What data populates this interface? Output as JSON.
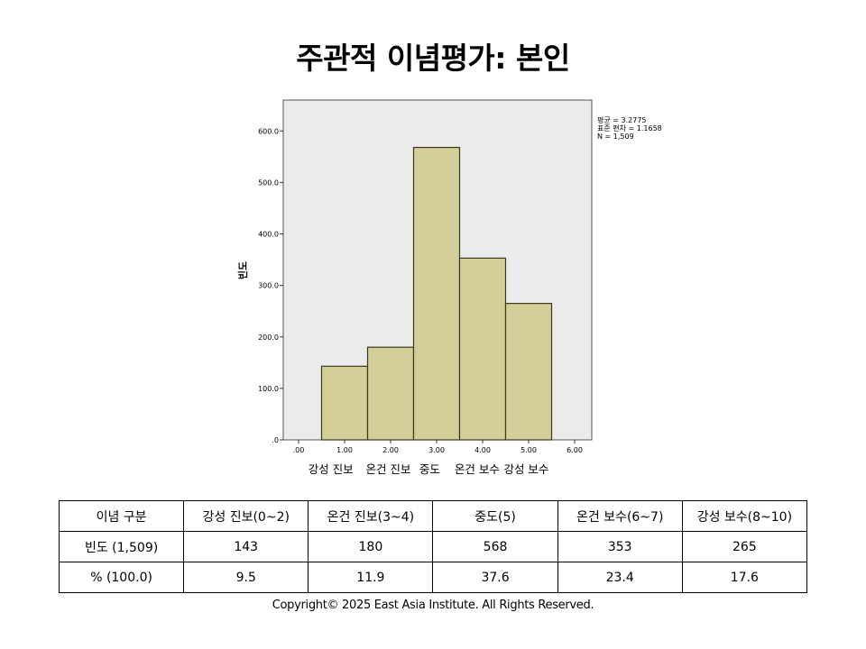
{
  "title": "주관적 이념평가: 본인",
  "chart_data": {
    "type": "bar",
    "title": "주관적 이념평가: 본인",
    "ylabel": "빈도",
    "xlabel": "",
    "x_ticks": [
      ".00",
      "1.00",
      "2.00",
      "3.00",
      "4.00",
      "5.00",
      "6.00"
    ],
    "x_range": [
      0,
      6
    ],
    "y_ticks": [
      ".0",
      "100.0",
      "200.0",
      "300.0",
      "400.0",
      "500.0",
      "600.0"
    ],
    "ylim": [
      0,
      660
    ],
    "bars": [
      {
        "x_start": 0.5,
        "x_end": 1.5,
        "value": 143
      },
      {
        "x_start": 1.5,
        "x_end": 2.5,
        "value": 180
      },
      {
        "x_start": 2.5,
        "x_end": 3.5,
        "value": 568
      },
      {
        "x_start": 3.5,
        "x_end": 4.5,
        "value": 353
      },
      {
        "x_start": 4.5,
        "x_end": 5.5,
        "value": 265
      }
    ],
    "category_labels": [
      {
        "text": "강성 진보",
        "x": 0.7
      },
      {
        "text": "온건 진보",
        "x": 1.95
      },
      {
        "text": "중도",
        "x": 2.85
      },
      {
        "text": "온건 보수",
        "x": 3.88
      },
      {
        "text": "강성 보수",
        "x": 4.95
      }
    ],
    "stats": [
      "평균 = 3.2775",
      "표준 편차 = 1.1658",
      "N = 1,509"
    ],
    "legend": "none",
    "grid": false,
    "colors": {
      "bar_fill": "#d4cf98",
      "bar_stroke": "#3a3a1e",
      "plot_bg": "#ebebeb"
    }
  },
  "table": {
    "header": [
      "이념 구분",
      "강성 진보(0~2)",
      "온건 진보(3~4)",
      "중도(5)",
      "온건 보수(6~7)",
      "강성 보수(8~10)"
    ],
    "rows": [
      [
        "빈도 (1,509)",
        "143",
        "180",
        "568",
        "353",
        "265"
      ],
      [
        "% (100.0)",
        "9.5",
        "11.9",
        "37.6",
        "23.4",
        "17.6"
      ]
    ]
  },
  "copyright": "Copyright© 2025 East Asia Institute. All Rights Reserved."
}
